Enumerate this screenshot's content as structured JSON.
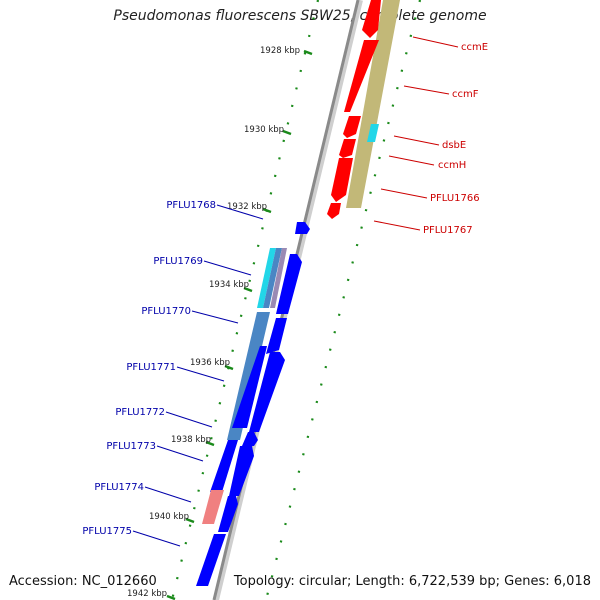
{
  "header": {
    "title": "Pseudomonas fluorescens SBW25, complete genome"
  },
  "footer": {
    "accession": "Accession: NC_012660",
    "summary": "Topology: circular; Length: 6,722,539 bp; Genes: 6,018"
  },
  "ruler": {
    "ticks": [
      {
        "label": "1928 kbp"
      },
      {
        "label": "1930 kbp"
      },
      {
        "label": "1932 kbp"
      },
      {
        "label": "1934 kbp"
      },
      {
        "label": "1936 kbp"
      },
      {
        "label": "1938 kbp"
      },
      {
        "label": "1940 kbp"
      },
      {
        "label": "1942 kbp"
      }
    ]
  },
  "genes_right": [
    {
      "label": "ccmE"
    },
    {
      "label": "ccmF"
    },
    {
      "label": "dsbE"
    },
    {
      "label": "ccmH"
    },
    {
      "label": "PFLU1766"
    },
    {
      "label": "PFLU1767"
    }
  ],
  "genes_left": [
    {
      "label": "PFLU1768"
    },
    {
      "label": "PFLU1769"
    },
    {
      "label": "PFLU1770"
    },
    {
      "label": "PFLU1771"
    },
    {
      "label": "PFLU1772"
    },
    {
      "label": "PFLU1773"
    },
    {
      "label": "PFLU1774"
    },
    {
      "label": "PFLU1775"
    }
  ],
  "colors": {
    "forward_strand": "#ff0000",
    "reverse_strand": "#0000ff",
    "right_label": "#cc0000",
    "left_label": "#0000aa",
    "ruler": "#1a8a1a",
    "backbone": "#888888",
    "feature_band": "#c2b878",
    "cyan_feature": "#22d6e8",
    "pink_feature": "#f08080",
    "steel_feature": "#4a86c4"
  }
}
